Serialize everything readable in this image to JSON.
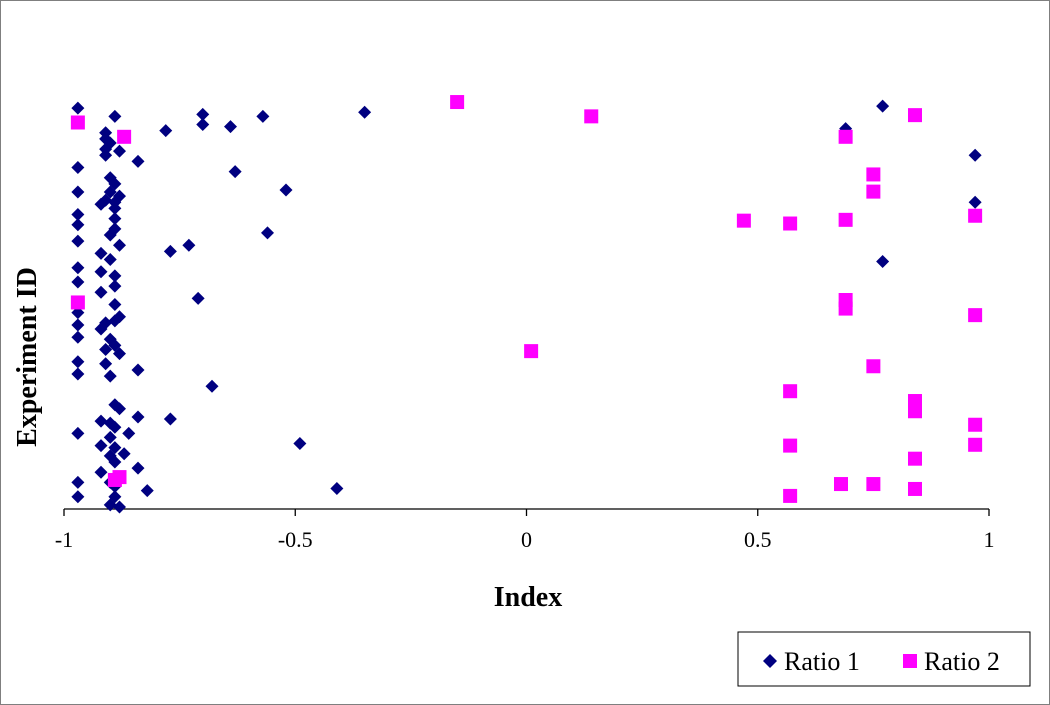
{
  "chart_data": {
    "type": "scatter",
    "title": "",
    "xlabel": "Index",
    "ylabel": "Experiment ID",
    "xlim": [
      -1,
      1
    ],
    "xticks": [
      "-1",
      "-0.5",
      "0",
      "0.5",
      "1"
    ],
    "xtick_values": [
      -1,
      -0.5,
      0,
      0.5,
      1
    ],
    "ylim": [
      0,
      100
    ],
    "grid": false,
    "legend_position": "bottom-right",
    "series": [
      {
        "name": "Ratio 1",
        "color": "#000080",
        "marker": "diamond",
        "points": [
          {
            "x": -0.97,
            "y": 98
          },
          {
            "x": -0.89,
            "y": 96
          },
          {
            "x": -0.7,
            "y": 96.5
          },
          {
            "x": -0.57,
            "y": 96
          },
          {
            "x": -0.35,
            "y": 97
          },
          {
            "x": 0.77,
            "y": 98.5
          },
          {
            "x": -0.78,
            "y": 92.5
          },
          {
            "x": -0.7,
            "y": 94
          },
          {
            "x": -0.64,
            "y": 93.5
          },
          {
            "x": 0.69,
            "y": 93
          },
          {
            "x": -0.91,
            "y": 92
          },
          {
            "x": -0.91,
            "y": 90.5
          },
          {
            "x": -0.9,
            "y": 89.5
          },
          {
            "x": -0.91,
            "y": 88
          },
          {
            "x": -0.88,
            "y": 87.5
          },
          {
            "x": -0.91,
            "y": 86.5
          },
          {
            "x": 0.97,
            "y": 86.5
          },
          {
            "x": -0.84,
            "y": 85
          },
          {
            "x": -0.97,
            "y": 83.5
          },
          {
            "x": -0.63,
            "y": 82.5
          },
          {
            "x": -0.9,
            "y": 81
          },
          {
            "x": -0.89,
            "y": 79.5
          },
          {
            "x": -0.97,
            "y": 77.5
          },
          {
            "x": -0.9,
            "y": 77.5
          },
          {
            "x": -0.52,
            "y": 78
          },
          {
            "x": -0.88,
            "y": 76.5
          },
          {
            "x": -0.91,
            "y": 75.5
          },
          {
            "x": -0.89,
            "y": 75
          },
          {
            "x": -0.92,
            "y": 74.5
          },
          {
            "x": 0.97,
            "y": 75
          },
          {
            "x": -0.89,
            "y": 73.5
          },
          {
            "x": -0.97,
            "y": 72
          },
          {
            "x": -0.89,
            "y": 71
          },
          {
            "x": -0.97,
            "y": 69.5
          },
          {
            "x": -0.89,
            "y": 68.5
          },
          {
            "x": -0.9,
            "y": 67
          },
          {
            "x": -0.56,
            "y": 67.5
          },
          {
            "x": -0.97,
            "y": 65.5
          },
          {
            "x": -0.88,
            "y": 64.5
          },
          {
            "x": -0.73,
            "y": 64.5
          },
          {
            "x": -0.77,
            "y": 63
          },
          {
            "x": -0.92,
            "y": 62.5
          },
          {
            "x": -0.9,
            "y": 61
          },
          {
            "x": 0.77,
            "y": 60.5
          },
          {
            "x": -0.97,
            "y": 59
          },
          {
            "x": -0.92,
            "y": 58
          },
          {
            "x": -0.89,
            "y": 57
          },
          {
            "x": -0.97,
            "y": 55.5
          },
          {
            "x": -0.89,
            "y": 54.5
          },
          {
            "x": -0.92,
            "y": 53
          },
          {
            "x": -0.71,
            "y": 51.5
          },
          {
            "x": -0.89,
            "y": 50
          },
          {
            "x": -0.97,
            "y": 48
          },
          {
            "x": -0.88,
            "y": 47
          },
          {
            "x": -0.89,
            "y": 46
          },
          {
            "x": -0.91,
            "y": 45.5
          },
          {
            "x": -0.97,
            "y": 45
          },
          {
            "x": -0.92,
            "y": 44
          },
          {
            "x": -0.97,
            "y": 42
          },
          {
            "x": -0.9,
            "y": 41.5
          },
          {
            "x": -0.89,
            "y": 40
          },
          {
            "x": -0.91,
            "y": 39
          },
          {
            "x": -0.88,
            "y": 38
          },
          {
            "x": -0.97,
            "y": 36
          },
          {
            "x": -0.91,
            "y": 35.5
          },
          {
            "x": -0.84,
            "y": 34
          },
          {
            "x": -0.97,
            "y": 33
          },
          {
            "x": -0.9,
            "y": 32.5
          },
          {
            "x": -0.68,
            "y": 30
          },
          {
            "x": -0.89,
            "y": 25.5
          },
          {
            "x": -0.88,
            "y": 24.5
          },
          {
            "x": -0.84,
            "y": 22.5
          },
          {
            "x": -0.77,
            "y": 22
          },
          {
            "x": -0.9,
            "y": 21
          },
          {
            "x": -0.92,
            "y": 21.5
          },
          {
            "x": -0.89,
            "y": 20
          },
          {
            "x": -0.97,
            "y": 18.5
          },
          {
            "x": -0.86,
            "y": 18.5
          },
          {
            "x": -0.9,
            "y": 17.5
          },
          {
            "x": -0.92,
            "y": 15.5
          },
          {
            "x": -0.89,
            "y": 15
          },
          {
            "x": -0.49,
            "y": 16
          },
          {
            "x": -0.87,
            "y": 13.5
          },
          {
            "x": -0.9,
            "y": 13
          },
          {
            "x": -0.89,
            "y": 11.5
          },
          {
            "x": -0.84,
            "y": 10
          },
          {
            "x": -0.92,
            "y": 9
          },
          {
            "x": -0.97,
            "y": 6.5
          },
          {
            "x": -0.9,
            "y": 6.5
          },
          {
            "x": -0.89,
            "y": 5.5
          },
          {
            "x": -0.82,
            "y": 4.5
          },
          {
            "x": -0.41,
            "y": 5
          },
          {
            "x": -0.97,
            "y": 3
          },
          {
            "x": -0.89,
            "y": 3
          },
          {
            "x": -0.9,
            "y": 1
          },
          {
            "x": -0.88,
            "y": 0.5
          }
        ]
      },
      {
        "name": "Ratio 2",
        "color": "#ff00ff",
        "marker": "square",
        "points": [
          {
            "x": -0.15,
            "y": 99.5
          },
          {
            "x": 0.14,
            "y": 96
          },
          {
            "x": 0.84,
            "y": 96.3
          },
          {
            "x": -0.97,
            "y": 94.5
          },
          {
            "x": -0.87,
            "y": 91
          },
          {
            "x": 0.69,
            "y": 91
          },
          {
            "x": 0.75,
            "y": 81.8
          },
          {
            "x": 0.75,
            "y": 77.6
          },
          {
            "x": 0.97,
            "y": 71.7
          },
          {
            "x": 0.47,
            "y": 70.5
          },
          {
            "x": 0.57,
            "y": 69.8
          },
          {
            "x": 0.69,
            "y": 70.7
          },
          {
            "x": -0.97,
            "y": 50.5
          },
          {
            "x": 0.69,
            "y": 51.1
          },
          {
            "x": 0.69,
            "y": 49
          },
          {
            "x": 0.97,
            "y": 47.4
          },
          {
            "x": 0.01,
            "y": 38.6
          },
          {
            "x": 0.75,
            "y": 34.9
          },
          {
            "x": 0.57,
            "y": 28.8
          },
          {
            "x": 0.84,
            "y": 26.4
          },
          {
            "x": 0.84,
            "y": 23.9
          },
          {
            "x": 0.97,
            "y": 20.6
          },
          {
            "x": 0.57,
            "y": 15.5
          },
          {
            "x": 0.97,
            "y": 15.7
          },
          {
            "x": 0.84,
            "y": 12.3
          },
          {
            "x": -0.89,
            "y": 7.1
          },
          {
            "x": -0.88,
            "y": 7.8
          },
          {
            "x": 0.68,
            "y": 6.1
          },
          {
            "x": 0.75,
            "y": 6.1
          },
          {
            "x": 0.84,
            "y": 4.9
          },
          {
            "x": 0.57,
            "y": 3.2
          }
        ]
      }
    ]
  }
}
